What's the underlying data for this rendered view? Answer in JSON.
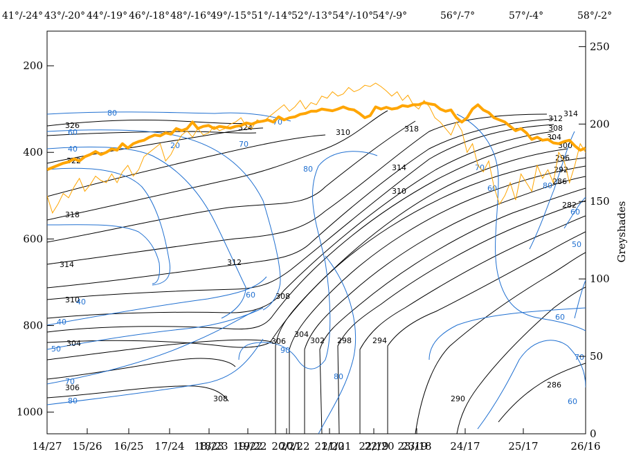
{
  "chart_data": {
    "type": "line",
    "title": "",
    "left_axis": {
      "range": [
        1050,
        120
      ],
      "ticks": [
        200,
        400,
        600,
        800,
        1000
      ],
      "inverted": true
    },
    "right_axis": {
      "label": "Greyshades",
      "range": [
        0,
        260
      ],
      "ticks": [
        0,
        50,
        100,
        150,
        200,
        250
      ]
    },
    "bottom_axis": {
      "tick_labels": [
        "14/27",
        "15/26",
        "16/25",
        "17/24",
        "18/23",
        "19/22",
        "20/21",
        "21/20",
        "22/19",
        "23/18",
        "24/17",
        "25/17",
        "26/16"
      ],
      "overlap_labels": [
        "18/23",
        "19/22",
        "20/22",
        "21/21",
        "22/20",
        "23/19"
      ]
    },
    "top_axis": {
      "labels": [
        "41°/-24°",
        "43°/-20°",
        "44°/-19°",
        "46°/-18°",
        "48°/-16°",
        "49°/-15°",
        "51°/-14°",
        "52°/-13°",
        "54°/-10°",
        "54°/-9°",
        "56°/-7°",
        "57°/-4°",
        "58°/-2°"
      ]
    },
    "grid": false,
    "black_contour_labels": [
      "326",
      "322",
      "318",
      "314",
      "310",
      "304",
      "306",
      "308",
      "312",
      "324",
      "310",
      "318",
      "314",
      "310",
      "308",
      "306",
      "304",
      "302",
      "298",
      "294",
      "290",
      "286",
      "282",
      "286",
      "292",
      "296",
      "300",
      "304",
      "308",
      "312",
      "314"
    ],
    "blue_contour_labels": [
      "80",
      "60",
      "40",
      "20",
      "40",
      "50",
      "70",
      "80",
      "40",
      "60",
      "70",
      "80",
      "90",
      "70",
      "70",
      "60",
      "60",
      "50",
      "70",
      "60",
      "80",
      "60",
      "80"
    ],
    "series": [
      {
        "name": "",
        "color": "#ffa500",
        "width": 4,
        "x": [
          0,
          0.01,
          0.02,
          0.03,
          0.04,
          0.05,
          0.06,
          0.07,
          0.08,
          0.09,
          0.1,
          0.11,
          0.12,
          0.13,
          0.14,
          0.15,
          0.16,
          0.17,
          0.18,
          0.19,
          0.2,
          0.21,
          0.22,
          0.23,
          0.24,
          0.25,
          0.26,
          0.27,
          0.28,
          0.29,
          0.3,
          0.31,
          0.32,
          0.33,
          0.34,
          0.35,
          0.36,
          0.37,
          0.38,
          0.39,
          0.4,
          0.41,
          0.42,
          0.43,
          0.44,
          0.45,
          0.46,
          0.47,
          0.48,
          0.49,
          0.5,
          0.51,
          0.52,
          0.53,
          0.54,
          0.55,
          0.56,
          0.57,
          0.58,
          0.59,
          0.6,
          0.61,
          0.62,
          0.63,
          0.64,
          0.65,
          0.66,
          0.67,
          0.68,
          0.69,
          0.7,
          0.71,
          0.72,
          0.73,
          0.74,
          0.75,
          0.76,
          0.77,
          0.78,
          0.79,
          0.8,
          0.81,
          0.82,
          0.83,
          0.84,
          0.85,
          0.86,
          0.87,
          0.88,
          0.89,
          0.9,
          0.91,
          0.92,
          0.93,
          0.94,
          0.95,
          0.96,
          0.97,
          0.98,
          0.99,
          1.0
        ],
        "y": [
          440,
          435,
          430,
          425,
          422,
          415,
          420,
          410,
          405,
          398,
          405,
          400,
          392,
          395,
          380,
          390,
          380,
          375,
          372,
          365,
          360,
          362,
          355,
          358,
          345,
          350,
          345,
          330,
          345,
          340,
          338,
          345,
          340,
          342,
          344,
          340,
          338,
          332,
          335,
          330,
          328,
          325,
          330,
          318,
          325,
          320,
          318,
          312,
          310,
          305,
          305,
          300,
          302,
          304,
          300,
          295,
          300,
          302,
          310,
          320,
          315,
          295,
          300,
          296,
          300,
          298,
          292,
          294,
          290,
          290,
          285,
          288,
          290,
          300,
          305,
          302,
          320,
          330,
          320,
          300,
          290,
          302,
          308,
          320,
          325,
          330,
          340,
          350,
          345,
          355,
          370,
          365,
          372,
          370,
          378,
          380,
          375,
          372,
          385,
          395,
          390
        ]
      },
      {
        "name": "",
        "color": "#ffa500",
        "width": 1,
        "x": [
          0,
          0.01,
          0.02,
          0.03,
          0.04,
          0.05,
          0.06,
          0.07,
          0.08,
          0.09,
          0.1,
          0.11,
          0.12,
          0.13,
          0.14,
          0.15,
          0.16,
          0.17,
          0.18,
          0.19,
          0.2,
          0.21,
          0.22,
          0.23,
          0.24,
          0.25,
          0.26,
          0.27,
          0.28,
          0.29,
          0.3,
          0.31,
          0.32,
          0.33,
          0.34,
          0.35,
          0.36,
          0.37,
          0.38,
          0.39,
          0.4,
          0.41,
          0.42,
          0.43,
          0.44,
          0.45,
          0.46,
          0.47,
          0.48,
          0.49,
          0.5,
          0.51,
          0.52,
          0.53,
          0.54,
          0.55,
          0.56,
          0.57,
          0.58,
          0.59,
          0.6,
          0.61,
          0.62,
          0.63,
          0.64,
          0.65,
          0.66,
          0.67,
          0.68,
          0.69,
          0.7,
          0.71,
          0.72,
          0.73,
          0.74,
          0.75,
          0.76,
          0.77,
          0.78,
          0.79,
          0.8,
          0.81,
          0.82,
          0.83,
          0.84,
          0.85,
          0.86,
          0.87,
          0.88,
          0.89,
          0.9,
          0.91,
          0.92,
          0.93,
          0.94,
          0.95,
          0.96,
          0.97,
          0.98,
          0.99,
          1.0
        ],
        "y": [
          500,
          540,
          520,
          495,
          505,
          480,
          460,
          490,
          475,
          455,
          465,
          470,
          450,
          470,
          445,
          430,
          455,
          440,
          410,
          400,
          390,
          380,
          420,
          405,
          380,
          360,
          350,
          365,
          345,
          360,
          355,
          340,
          350,
          345,
          335,
          330,
          320,
          340,
          345,
          325,
          330,
          320,
          310,
          300,
          290,
          305,
          295,
          280,
          300,
          285,
          290,
          270,
          275,
          260,
          270,
          265,
          250,
          260,
          255,
          245,
          248,
          240,
          248,
          258,
          270,
          260,
          280,
          268,
          290,
          300,
          280,
          295,
          320,
          330,
          345,
          360,
          330,
          350,
          400,
          380,
          430,
          445,
          420,
          480,
          520,
          500,
          470,
          510,
          450,
          470,
          490,
          430,
          460,
          440,
          470,
          400,
          420,
          470,
          430,
          380,
          400
        ]
      }
    ]
  }
}
